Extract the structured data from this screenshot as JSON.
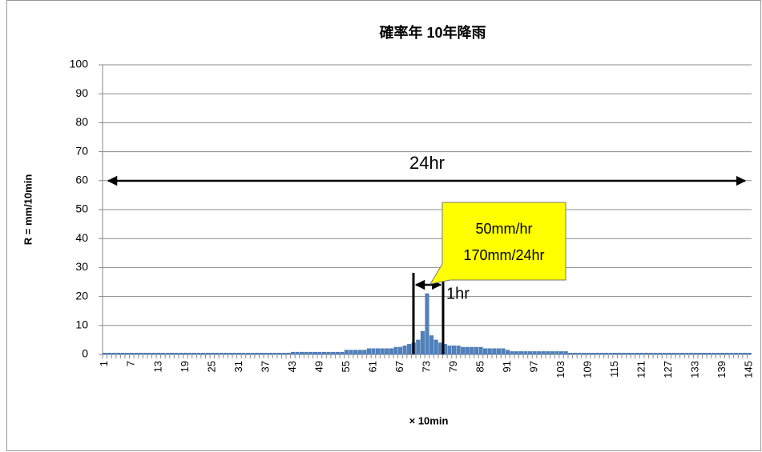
{
  "chart_data": {
    "type": "bar",
    "title": "確率年 10年降雨",
    "y_label": "R = mm/10min",
    "x_label": "× 10min",
    "annotations": [
      "24hr",
      "1hr",
      "50mm/hr",
      "170mm/24hr"
    ],
    "categories": [
      "1",
      null,
      null,
      null,
      null,
      null,
      "7",
      null,
      null,
      null,
      null,
      null,
      "13",
      null,
      null,
      null,
      null,
      null,
      "19",
      null,
      null,
      null,
      null,
      null,
      "25",
      null,
      null,
      null,
      null,
      null,
      "31",
      null,
      null,
      null,
      null,
      null,
      "37",
      null,
      null,
      null,
      null,
      null,
      "43",
      null,
      null,
      null,
      null,
      null,
      "49",
      null,
      null,
      null,
      null,
      null,
      "55",
      null,
      null,
      null,
      null,
      null,
      "61",
      null,
      null,
      null,
      null,
      null,
      "67",
      null,
      null,
      null,
      null,
      null,
      "73",
      null,
      null,
      null,
      null,
      null,
      "79",
      null,
      null,
      null,
      null,
      null,
      "85",
      null,
      null,
      null,
      null,
      null,
      "91",
      null,
      null,
      null,
      null,
      null,
      "97",
      null,
      null,
      null,
      null,
      null,
      "103",
      null,
      null,
      null,
      null,
      null,
      "109",
      null,
      null,
      null,
      null,
      null,
      "115",
      null,
      null,
      null,
      null,
      null,
      "121",
      null,
      null,
      null,
      null,
      null,
      "127",
      null,
      null,
      null,
      null,
      null,
      "133",
      null,
      null,
      null,
      null,
      null,
      "139",
      null,
      null,
      null,
      null,
      null,
      "145"
    ],
    "values": [
      0.5,
      0.5,
      0.5,
      0.5,
      0.5,
      0.5,
      0.5,
      0.5,
      0.5,
      0.5,
      0.5,
      0.5,
      0.5,
      0.5,
      0.5,
      0.5,
      0.5,
      0.5,
      0.5,
      0.5,
      0.5,
      0.5,
      0.5,
      0.5,
      0.5,
      0.5,
      0.5,
      0.5,
      0.5,
      0.5,
      0.5,
      0.5,
      0.5,
      0.5,
      0.5,
      0.5,
      0.5,
      0.5,
      0.5,
      0.5,
      0.5,
      0.5,
      0.8,
      0.8,
      0.8,
      0.8,
      0.8,
      0.8,
      0.8,
      0.8,
      0.8,
      0.8,
      0.8,
      0.8,
      1.5,
      1.5,
      1.5,
      1.5,
      1.5,
      2,
      2,
      2,
      2,
      2,
      2,
      2.5,
      2.5,
      3,
      3.5,
      4,
      5,
      8,
      21,
      6.5,
      5,
      4,
      3.5,
      3,
      3,
      3,
      2.5,
      2.5,
      2.5,
      2.5,
      2.5,
      2,
      2,
      2,
      2,
      2,
      1.5,
      1,
      1,
      1,
      1,
      1,
      1,
      1,
      1,
      1,
      1,
      1,
      1,
      1,
      0.5,
      0.5,
      0.5,
      0.5,
      0.5,
      0.5,
      0.5,
      0.5,
      0.5,
      0.5,
      0.5,
      0.5,
      0.5,
      0.5,
      0.5,
      0.5,
      0.5,
      0.5,
      0.5,
      0.5,
      0.5,
      0.5,
      0.5,
      0.5,
      0.5,
      0.5,
      0.5,
      0.5,
      0.5,
      0.5,
      0.5,
      0.5,
      0.5,
      0.5,
      0.5,
      0.5,
      0.5,
      0.5,
      0.5,
      0.5,
      0.5
    ],
    "color": "#4f81bd",
    "ylim": [
      0,
      100
    ],
    "yticks": [
      0,
      10,
      20,
      30,
      40,
      50,
      60,
      70,
      80,
      90,
      100
    ],
    "grid": true
  }
}
